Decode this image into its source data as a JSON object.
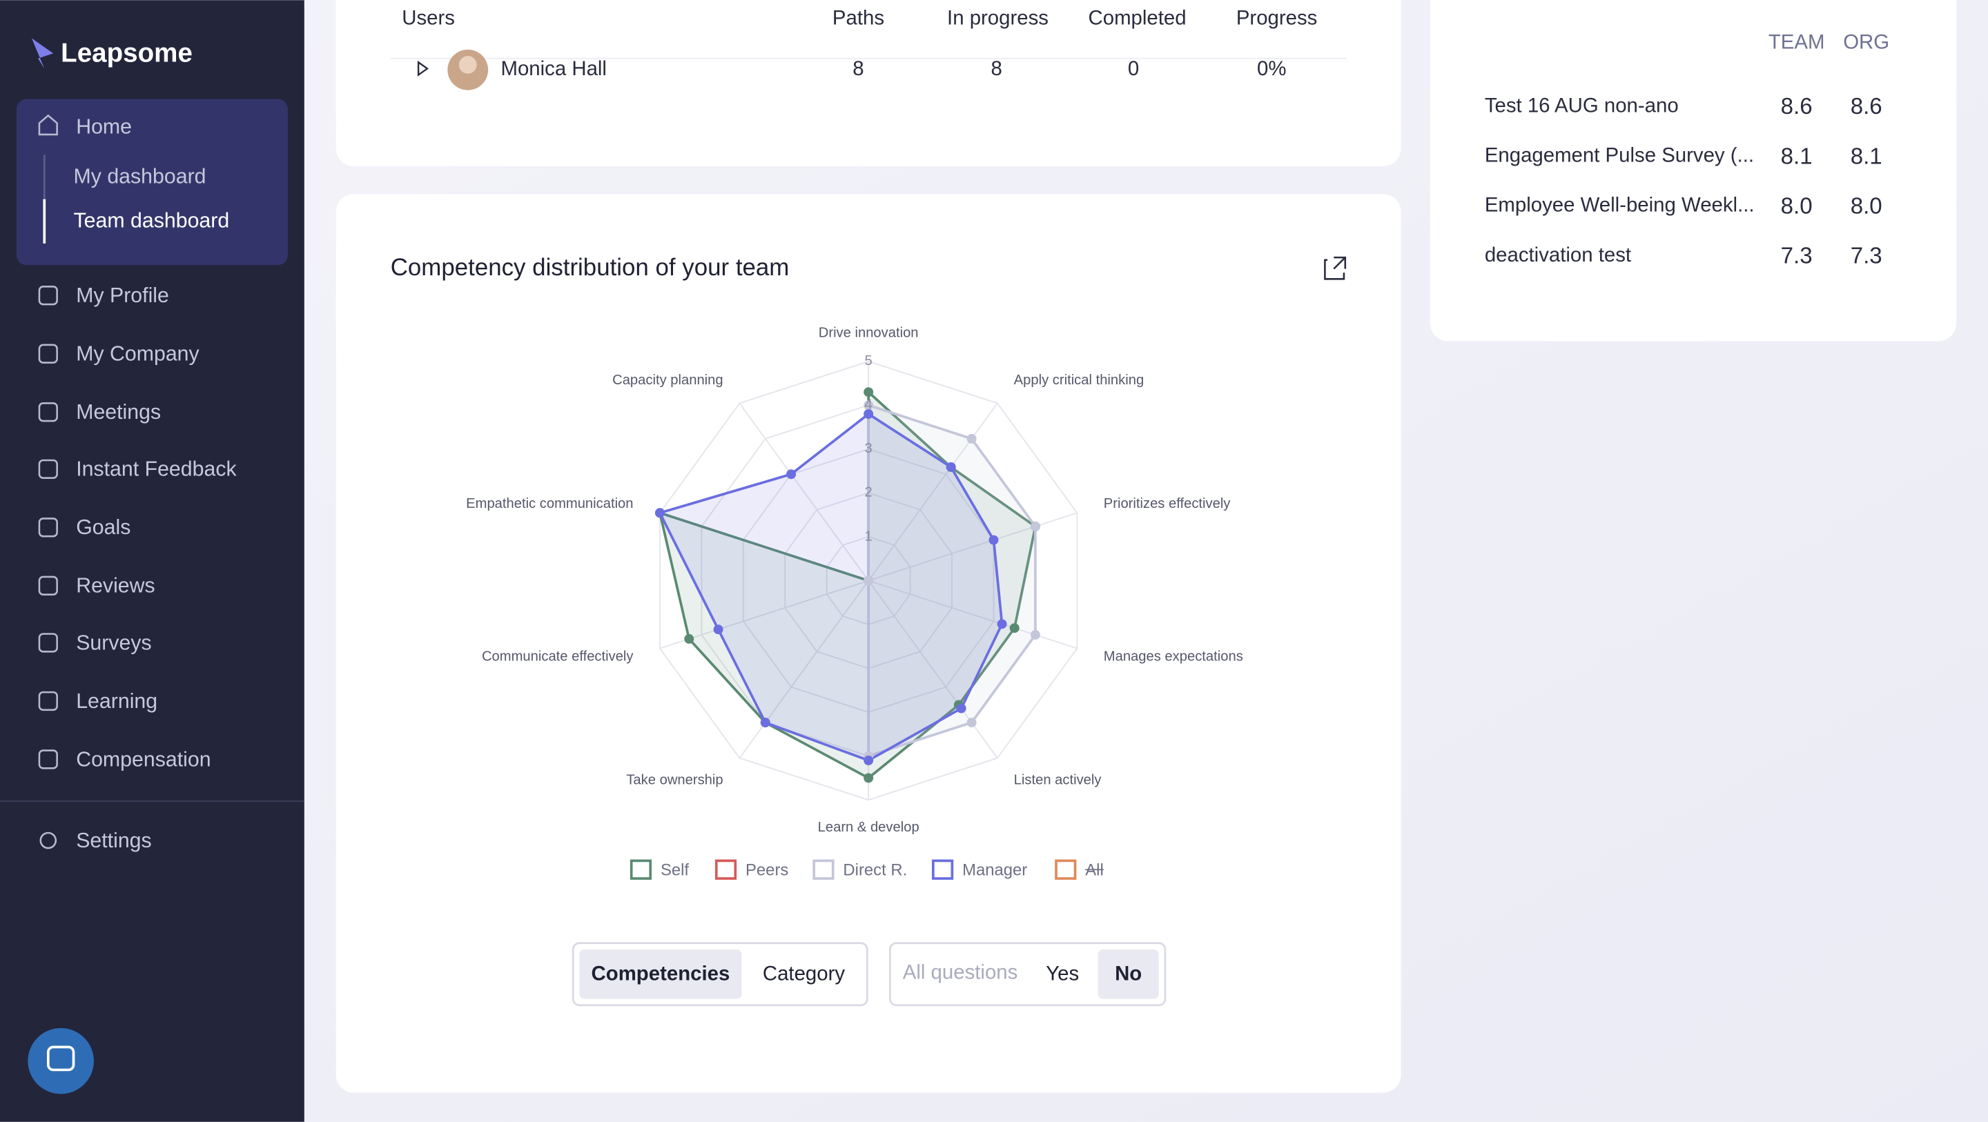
{
  "sidebar": {
    "logo": "Leapsome",
    "home": "Home",
    "home_children": [
      "My dashboard",
      "Team dashboard"
    ],
    "nav": [
      "My Profile",
      "My Company",
      "Meetings",
      "Instant Feedback",
      "Goals",
      "Reviews",
      "Surveys",
      "Learning",
      "Compensation"
    ],
    "settings": "Settings"
  },
  "users_table": {
    "headers": [
      "Users",
      "Paths",
      "In progress",
      "Completed",
      "Progress"
    ],
    "rows": [
      [
        "Monica Hall",
        8,
        8,
        0,
        "0%"
      ]
    ]
  },
  "survey_scores": {
    "headers": [
      "TEAM",
      "ORG"
    ],
    "rows": [
      {
        "name": "Test 16 AUG non-ano",
        "team": "8.6",
        "org": "8.6"
      },
      {
        "name": "Engagement Pulse Survey (...",
        "team": "8.1",
        "org": "8.1"
      },
      {
        "name": "Employee Well-being Weekl...",
        "team": "8.0",
        "org": "8.0"
      },
      {
        "name": "deactivation test",
        "team": "7.3",
        "org": "7.3"
      }
    ]
  },
  "chart_data": {
    "type": "radar",
    "title": "Competency distribution of your team",
    "categories": [
      "Drive innovation",
      "Apply critical thinking",
      "Prioritizes effectively",
      "Manages expectations",
      "Listen actively",
      "Learn & develop",
      "Take ownership",
      "Communicate effectively",
      "Empathetic communication",
      "Capacity planning"
    ],
    "rlim": [
      0,
      5
    ],
    "rticks": [
      1,
      2,
      3,
      4,
      5
    ],
    "grid": true,
    "series": [
      {
        "name": "Self",
        "color": "#5a8a72",
        "values": [
          4.3,
          3.2,
          4.0,
          3.5,
          3.5,
          4.5,
          4.0,
          4.3,
          5,
          0
        ]
      },
      {
        "name": "Peers",
        "color": "#d65a5a",
        "values": [
          null,
          null,
          null,
          null,
          null,
          null,
          null,
          null,
          null,
          null
        ]
      },
      {
        "name": "Direct R.",
        "color": "#c4c6da",
        "values": [
          4.0,
          4.0,
          4.0,
          4.0,
          4.0,
          4.0,
          0,
          0,
          0,
          0
        ]
      },
      {
        "name": "Manager",
        "color": "#6a6ee0",
        "values": [
          3.8,
          3.2,
          3.0,
          3.2,
          3.6,
          4.1,
          4.0,
          3.6,
          5,
          3.0
        ]
      },
      {
        "name": "All",
        "color": "#e08a5a",
        "hidden": true,
        "values": [
          null,
          null,
          null,
          null,
          null,
          null,
          null,
          null,
          null,
          null
        ]
      }
    ]
  },
  "toggles": [
    {
      "options": [
        "Competencies",
        "Category"
      ],
      "selected": 0
    },
    {
      "placeholder": "All questions",
      "options": [
        "Yes",
        "No"
      ],
      "selected": 1
    }
  ]
}
